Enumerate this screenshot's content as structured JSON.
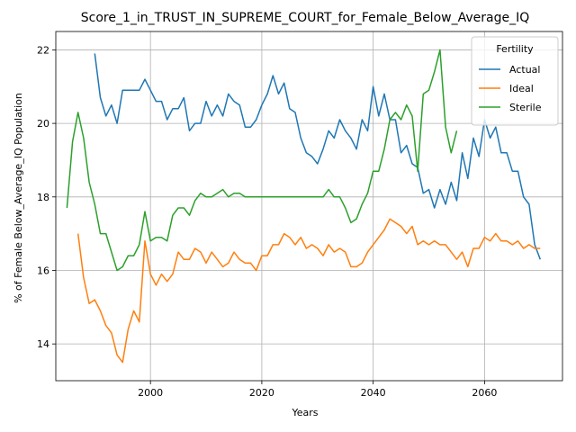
{
  "chart_data": {
    "type": "line",
    "title": "Score_1_in_TRUST_IN_SUPREME_COURT_for_Female_Below_Average_IQ",
    "xlabel": "Years",
    "ylabel": "% of Female Below_Average_IQ Population",
    "xlim": [
      1983,
      2074
    ],
    "ylim": [
      13.0,
      22.5
    ],
    "xticks": [
      2000,
      2020,
      2040,
      2060
    ],
    "yticks": [
      14,
      16,
      18,
      20,
      22
    ],
    "grid": true,
    "legend": {
      "title": "Fertility",
      "position": "top-right"
    },
    "series": [
      {
        "name": "Actual",
        "color": "#1f77b4",
        "x": [
          1990,
          1991,
          1992,
          1993,
          1994,
          1995,
          1996,
          1997,
          1998,
          1999,
          2000,
          2001,
          2002,
          2003,
          2004,
          2005,
          2006,
          2007,
          2008,
          2009,
          2010,
          2011,
          2012,
          2013,
          2014,
          2015,
          2016,
          2017,
          2018,
          2019,
          2020,
          2021,
          2022,
          2023,
          2024,
          2025,
          2026,
          2027,
          2028,
          2029,
          2030,
          2031,
          2032,
          2033,
          2034,
          2035,
          2036,
          2037,
          2038,
          2039,
          2040,
          2041,
          2042,
          2043,
          2044,
          2045,
          2046,
          2047,
          2048,
          2049,
          2050,
          2051,
          2052,
          2053,
          2054,
          2055,
          2056,
          2057,
          2058,
          2059,
          2060,
          2061,
          2062,
          2063,
          2064,
          2065,
          2066,
          2067,
          2068,
          2069,
          2070
        ],
        "y": [
          21.9,
          20.7,
          20.2,
          20.5,
          20.0,
          20.9,
          20.9,
          20.9,
          20.9,
          21.2,
          20.9,
          20.6,
          20.6,
          20.1,
          20.4,
          20.4,
          20.7,
          19.8,
          20.0,
          20.0,
          20.6,
          20.2,
          20.5,
          20.2,
          20.8,
          20.6,
          20.5,
          19.9,
          19.9,
          20.1,
          20.5,
          20.8,
          21.3,
          20.8,
          21.1,
          20.4,
          20.3,
          19.6,
          19.2,
          19.1,
          18.9,
          19.3,
          19.8,
          19.6,
          20.1,
          19.8,
          19.6,
          19.3,
          20.1,
          19.8,
          21.0,
          20.2,
          20.8,
          20.1,
          20.1,
          19.2,
          19.4,
          18.9,
          18.8,
          18.1,
          18.2,
          17.7,
          18.2,
          17.8,
          18.4,
          17.9,
          19.2,
          18.5,
          19.6,
          19.1,
          20.1,
          19.6,
          19.9,
          19.2,
          19.2,
          18.7,
          18.7,
          18.0,
          17.8,
          16.7,
          16.3
        ]
      },
      {
        "name": "Ideal",
        "color": "#ff7f0e",
        "x": [
          1987,
          1988,
          1989,
          1990,
          1991,
          1992,
          1993,
          1994,
          1995,
          1996,
          1997,
          1998,
          1999,
          2000,
          2001,
          2002,
          2003,
          2004,
          2005,
          2006,
          2007,
          2008,
          2009,
          2010,
          2011,
          2012,
          2013,
          2014,
          2015,
          2016,
          2017,
          2018,
          2019,
          2020,
          2021,
          2022,
          2023,
          2024,
          2025,
          2026,
          2027,
          2028,
          2029,
          2030,
          2031,
          2032,
          2033,
          2034,
          2035,
          2036,
          2037,
          2038,
          2039,
          2040,
          2041,
          2042,
          2043,
          2044,
          2045,
          2046,
          2047,
          2048,
          2049,
          2050,
          2051,
          2052,
          2053,
          2054,
          2055,
          2056,
          2057,
          2058,
          2059,
          2060,
          2061,
          2062,
          2063,
          2064,
          2065,
          2066,
          2067,
          2068,
          2069,
          2070
        ],
        "y": [
          17.0,
          15.8,
          15.1,
          15.2,
          14.9,
          14.5,
          14.3,
          13.7,
          13.5,
          14.4,
          14.9,
          14.6,
          16.8,
          15.9,
          15.6,
          15.9,
          15.7,
          15.9,
          16.5,
          16.3,
          16.3,
          16.6,
          16.5,
          16.2,
          16.5,
          16.3,
          16.1,
          16.2,
          16.5,
          16.3,
          16.2,
          16.2,
          16.0,
          16.4,
          16.4,
          16.7,
          16.7,
          17.0,
          16.9,
          16.7,
          16.9,
          16.6,
          16.7,
          16.6,
          16.4,
          16.7,
          16.5,
          16.6,
          16.5,
          16.1,
          16.1,
          16.2,
          16.5,
          16.7,
          16.9,
          17.1,
          17.4,
          17.3,
          17.2,
          17.0,
          17.2,
          16.7,
          16.8,
          16.7,
          16.8,
          16.7,
          16.7,
          16.5,
          16.3,
          16.5,
          16.1,
          16.6,
          16.6,
          16.9,
          16.8,
          17.0,
          16.8,
          16.8,
          16.7,
          16.8,
          16.6,
          16.7,
          16.6,
          16.6
        ]
      },
      {
        "name": "Sterile",
        "color": "#2ca02c",
        "x": [
          1985,
          1986,
          1987,
          1988,
          1989,
          1990,
          1991,
          1992,
          1993,
          1994,
          1995,
          1996,
          1997,
          1998,
          1999,
          2000,
          2001,
          2002,
          2003,
          2004,
          2005,
          2006,
          2007,
          2008,
          2009,
          2010,
          2011,
          2012,
          2013,
          2014,
          2015,
          2016,
          2017,
          2018,
          2019,
          2020,
          2021,
          2022,
          2023,
          2024,
          2025,
          2026,
          2027,
          2028,
          2029,
          2030,
          2031,
          2032,
          2033,
          2034,
          2035,
          2036,
          2037,
          2038,
          2039,
          2040,
          2041,
          2042,
          2043,
          2044,
          2045,
          2046,
          2047,
          2048,
          2049,
          2050,
          2051,
          2052,
          2053,
          2054,
          2055
        ],
        "y": [
          17.7,
          19.5,
          20.3,
          19.6,
          18.4,
          17.8,
          17.0,
          17.0,
          16.5,
          16.0,
          16.1,
          16.4,
          16.4,
          16.7,
          17.6,
          16.8,
          16.9,
          16.9,
          16.8,
          17.5,
          17.7,
          17.7,
          17.5,
          17.9,
          18.1,
          18.0,
          18.0,
          18.1,
          18.2,
          18.0,
          18.1,
          18.1,
          18.0,
          18.0,
          18.0,
          18.0,
          18.0,
          18.0,
          18.0,
          18.0,
          18.0,
          18.0,
          18.0,
          18.0,
          18.0,
          18.0,
          18.0,
          18.2,
          18.0,
          18.0,
          17.7,
          17.3,
          17.4,
          17.8,
          18.1,
          18.7,
          18.7,
          19.3,
          20.1,
          20.3,
          20.1,
          20.5,
          20.2,
          18.7,
          20.8,
          20.9,
          21.4,
          22.0,
          19.9,
          19.2,
          19.8
        ]
      }
    ]
  }
}
